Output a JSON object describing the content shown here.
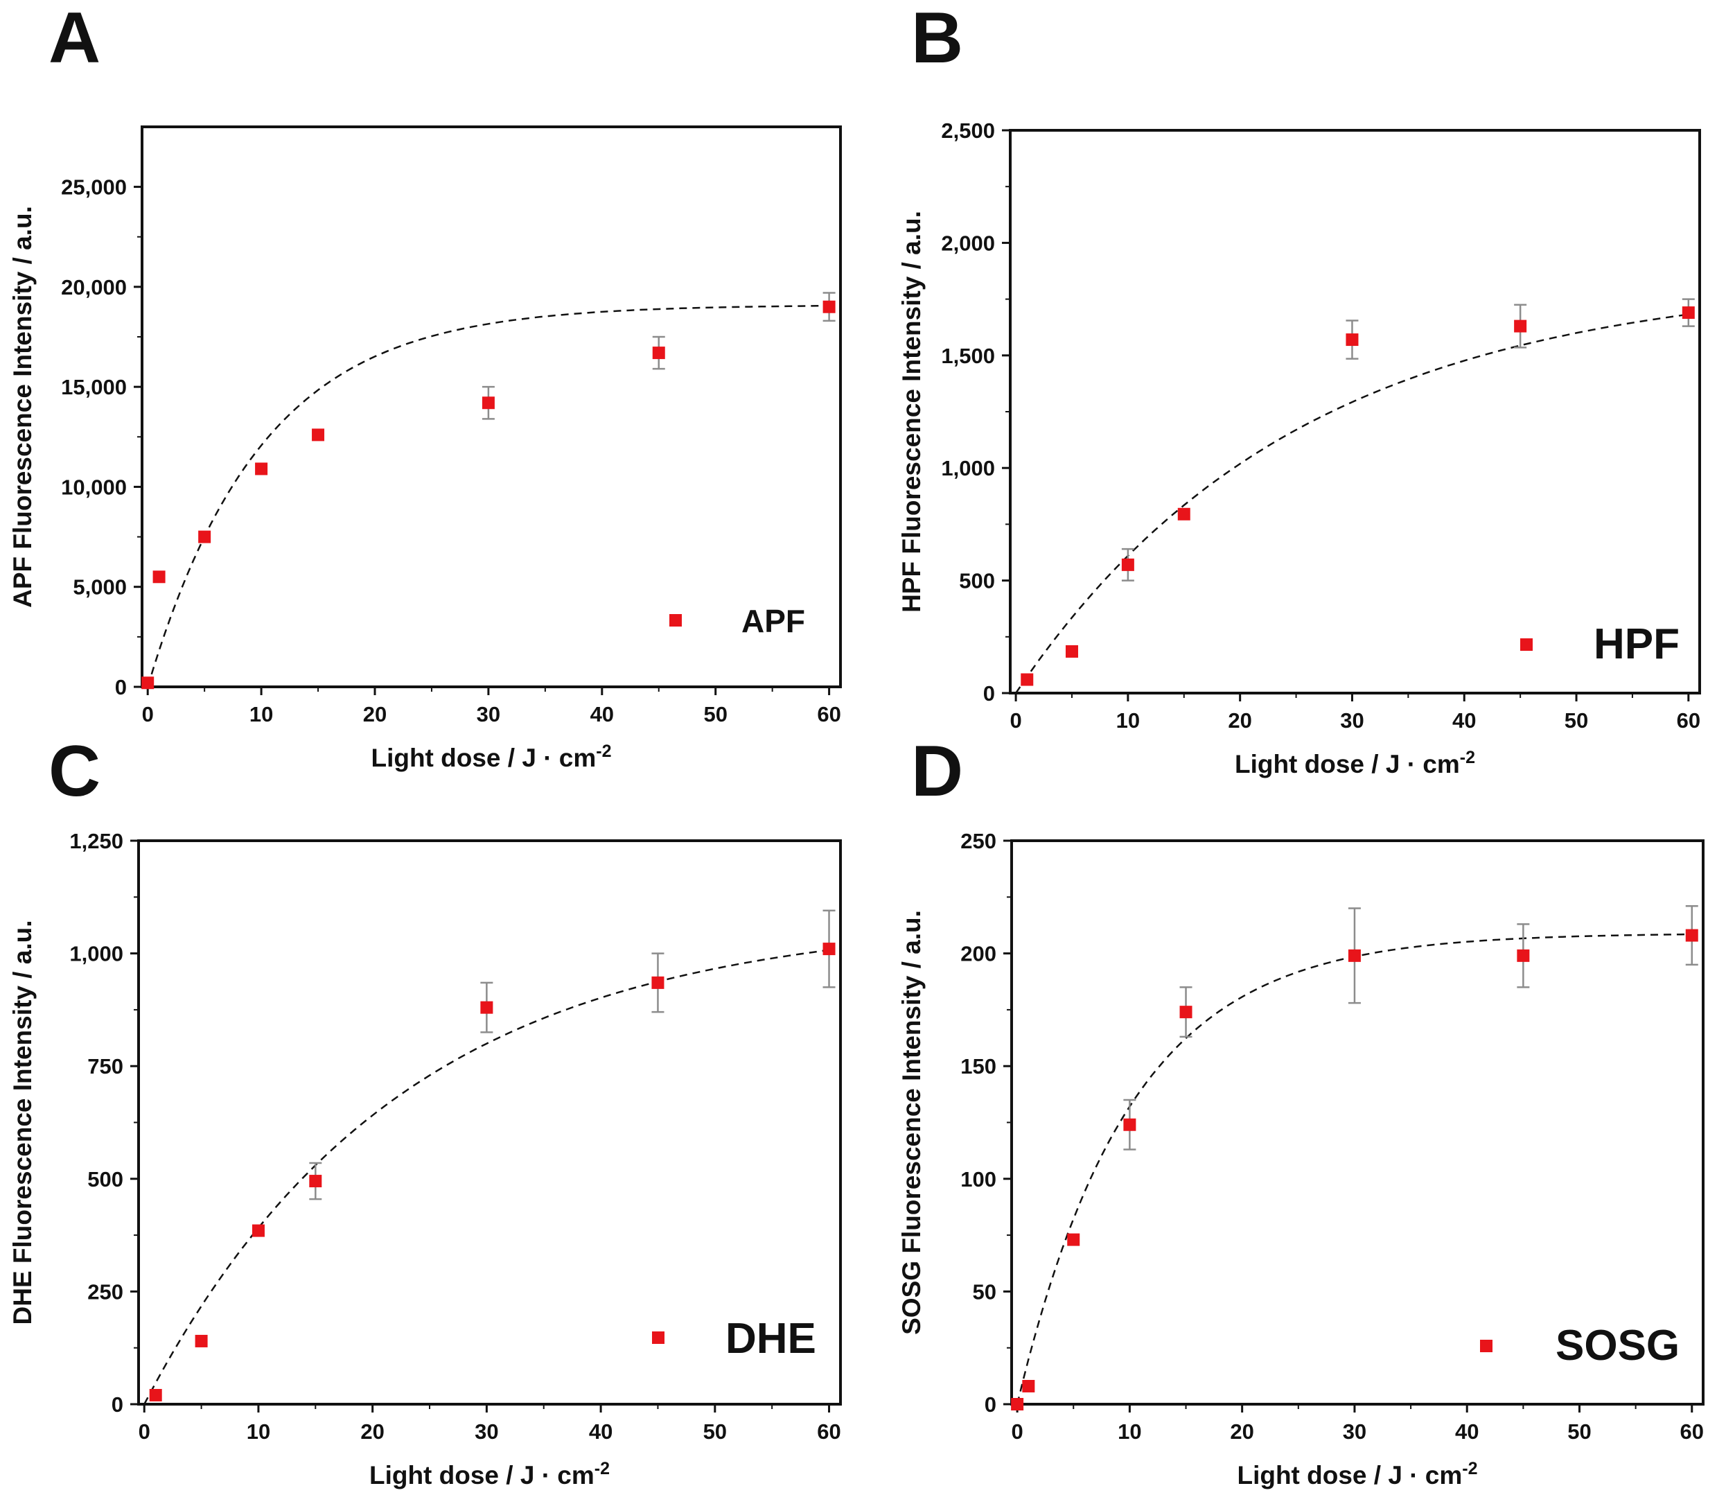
{
  "figure": {
    "panels": [
      "A",
      "B",
      "C",
      "D"
    ]
  },
  "colors": {
    "marker": "#e8141a",
    "errorbar": "#8c8c8c",
    "axis": "#111111",
    "fit": "#111111"
  },
  "chart_data": [
    {
      "panel": "A",
      "type": "scatter",
      "title": "",
      "xlabel": "Light dose / J · cm",
      "xlabel_sup": "-2",
      "ylabel": "APF Fluorescence Intensity / a.u.",
      "xlim": [
        -0.5,
        61
      ],
      "ylim": [
        0,
        28000
      ],
      "xticks": [
        0,
        10,
        20,
        30,
        40,
        50,
        60
      ],
      "yticks": [
        0,
        5000,
        10000,
        15000,
        20000,
        25000
      ],
      "ytick_labels": [
        "0",
        "5,000",
        "10,000",
        "15,000",
        "20,000",
        "25,000"
      ],
      "series": [
        {
          "name": "APF",
          "marker": "square",
          "x": [
            0,
            1,
            5,
            10,
            15,
            30,
            45,
            60
          ],
          "y": [
            200,
            5500,
            7500,
            10900,
            12600,
            14200,
            16700,
            19000
          ],
          "yerr": [
            0,
            0,
            0,
            0,
            0,
            800,
            800,
            700
          ]
        }
      ],
      "fit": {
        "style": "dashed",
        "model": "exponential saturation",
        "ymax": 19100,
        "k": 0.1
      },
      "legend": {
        "label": "APF",
        "position": "bottom-right"
      }
    },
    {
      "panel": "B",
      "type": "scatter",
      "title": "",
      "xlabel": "Light dose / J · cm",
      "xlabel_sup": "-2",
      "ylabel": "HPF Fluorescence Intensity / a.u.",
      "xlim": [
        -0.5,
        61
      ],
      "ylim": [
        0,
        2500
      ],
      "xticks": [
        0,
        10,
        20,
        30,
        40,
        50,
        60
      ],
      "yticks": [
        0,
        500,
        1000,
        1500,
        2000,
        2500
      ],
      "ytick_labels": [
        "0",
        "500",
        "1,000",
        "1,500",
        "2,000",
        "2,500"
      ],
      "series": [
        {
          "name": "HPF",
          "marker": "square",
          "x": [
            1,
            5,
            10,
            15,
            30,
            45,
            60
          ],
          "y": [
            60,
            185,
            570,
            795,
            1570,
            1630,
            1690
          ],
          "yerr": [
            0,
            0,
            70,
            0,
            85,
            95,
            60
          ]
        }
      ],
      "fit": {
        "style": "dashed",
        "model": "exponential saturation",
        "ymax": 1850,
        "k": 0.04
      },
      "legend": {
        "label": "HPF",
        "position": "bottom-right"
      }
    },
    {
      "panel": "C",
      "type": "scatter",
      "title": "",
      "xlabel": "Light dose / J · cm",
      "xlabel_sup": "-2",
      "ylabel": "DHE Fluorescence Intensity / a.u.",
      "xlim": [
        -0.5,
        61
      ],
      "ylim": [
        0,
        1250
      ],
      "xticks": [
        0,
        10,
        20,
        30,
        40,
        50,
        60
      ],
      "yticks": [
        0,
        250,
        500,
        750,
        1000,
        1250
      ],
      "ytick_labels": [
        "0",
        "250",
        "500",
        "750",
        "1,000",
        "1,250"
      ],
      "series": [
        {
          "name": "DHE",
          "marker": "square",
          "x": [
            1,
            5,
            10,
            15,
            30,
            45,
            60
          ],
          "y": [
            20,
            140,
            385,
            495,
            880,
            935,
            1010
          ],
          "yerr": [
            0,
            0,
            0,
            40,
            55,
            65,
            85
          ]
        }
      ],
      "fit": {
        "style": "dashed",
        "model": "exponential saturation",
        "ymax": 1080,
        "k": 0.045
      },
      "legend": {
        "label": "DHE",
        "position": "bottom-right"
      }
    },
    {
      "panel": "D",
      "type": "scatter",
      "title": "",
      "xlabel": "Light dose / J · cm",
      "xlabel_sup": "-2",
      "ylabel": "SOSG Fluorescence Intensity / a.u.",
      "xlim": [
        -0.5,
        61
      ],
      "ylim": [
        0,
        250
      ],
      "xticks": [
        0,
        10,
        20,
        30,
        40,
        50,
        60
      ],
      "yticks": [
        0,
        50,
        100,
        150,
        200,
        250
      ],
      "ytick_labels": [
        "0",
        "50",
        "100",
        "150",
        "200",
        "250"
      ],
      "series": [
        {
          "name": "SOSG",
          "marker": "square",
          "x": [
            0,
            1,
            5,
            10,
            15,
            30,
            45,
            60
          ],
          "y": [
            0,
            8,
            73,
            124,
            174,
            199,
            199,
            208
          ],
          "yerr": [
            0,
            0,
            0,
            11,
            11,
            21,
            14,
            13
          ]
        }
      ],
      "fit": {
        "style": "dashed",
        "model": "exponential saturation",
        "ymax": 209,
        "k": 0.1
      },
      "legend": {
        "label": "SOSG",
        "position": "bottom-right"
      }
    }
  ]
}
